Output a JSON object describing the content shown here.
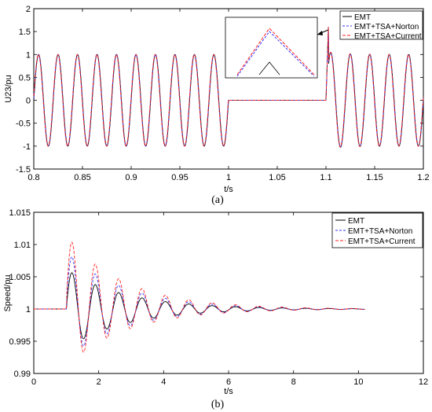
{
  "chart_data": [
    {
      "type": "line",
      "caption": "(a)",
      "xlabel": "t/s",
      "ylabel": "U23/pu",
      "xlim": [
        0.8,
        1.2
      ],
      "ylim": [
        -1.5,
        2
      ],
      "xticks": [
        "0.8",
        "0.85",
        "0.9",
        "0.95",
        "1",
        "1.05",
        "1.1",
        "1.15",
        "1.2"
      ],
      "yticks": [
        "-1.5",
        "-1",
        "-0.5",
        "0",
        "0.5",
        "1",
        "1.5",
        "2"
      ],
      "legend_position": "top-right",
      "colors": {
        "EMT": "#000000",
        "EMT+TSA+Norton": "#3333ff",
        "EMT+TSA+Current": "#ff2222"
      },
      "series": [
        {
          "name": "EMT"
        },
        {
          "name": "EMT+TSA+Norton"
        },
        {
          "name": "EMT+TSA+Current"
        }
      ],
      "signal": {
        "frequency_hz": 50,
        "amplitude": 1.0,
        "fault_start": 1.0,
        "fault_end": 1.1,
        "fault_level": 0.0,
        "recovery_spike": 1.6
      },
      "inset": {
        "description_shown": true
      }
    },
    {
      "type": "line",
      "caption": "(b)",
      "xlabel": "t/s",
      "ylabel": "Speed/pu",
      "xlim": [
        0,
        12
      ],
      "ylim": [
        0.99,
        1.015
      ],
      "xticks": [
        "0",
        "2",
        "4",
        "6",
        "8",
        "10",
        "12"
      ],
      "yticks": [
        "0.99",
        "0.995",
        "1",
        "1.005",
        "1.01",
        "1.015"
      ],
      "legend_position": "top-right",
      "colors": {
        "EMT": "#000000",
        "EMT+TSA+Norton": "#3333ff",
        "EMT+TSA+Current": "#ff2222"
      },
      "series": [
        {
          "name": "EMT",
          "peak": 0.0062,
          "offset": 0.0,
          "decay": 0.55,
          "period": 0.72,
          "start": 1.0
        },
        {
          "name": "EMT+TSA+Norton",
          "peak": 0.0083,
          "offset": 0.0012,
          "decay": 0.55,
          "period": 0.72,
          "start": 1.0
        },
        {
          "name": "EMT+TSA+Current",
          "peak": 0.0102,
          "offset": 0.0024,
          "decay": 0.55,
          "period": 0.72,
          "start": 1.0
        }
      ],
      "flat_value": 1.0,
      "end_time": 10.2
    }
  ]
}
